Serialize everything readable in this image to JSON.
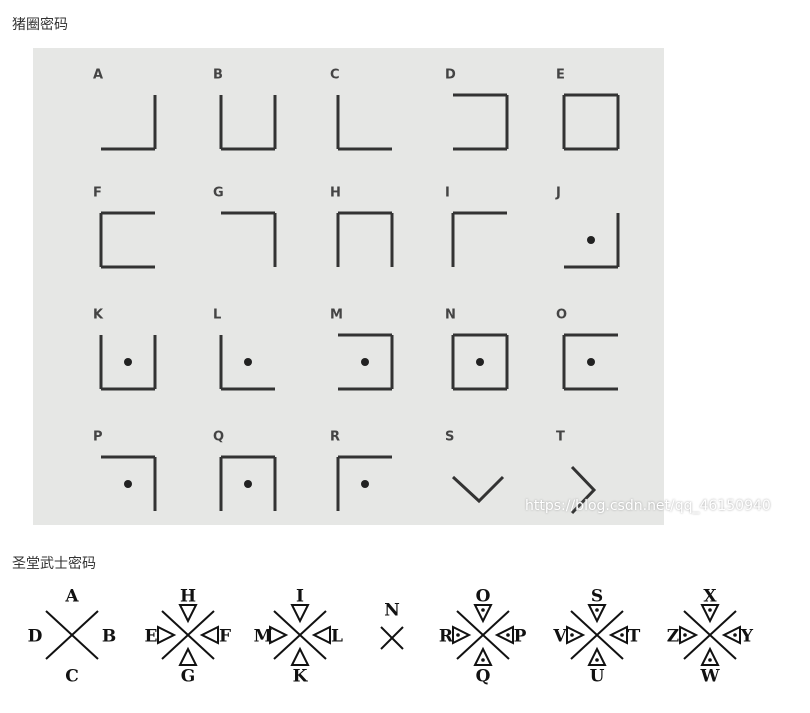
{
  "pigpen": {
    "title": "猪圈密码",
    "letters": [
      "A",
      "B",
      "C",
      "D",
      "E",
      "F",
      "G",
      "H",
      "I",
      "J",
      "K",
      "L",
      "M",
      "N",
      "O",
      "P",
      "Q",
      "R",
      "S",
      "T"
    ],
    "watermark": "https://blog.csdn.net/qq_46150940"
  },
  "templar": {
    "title": "圣堂武士密码",
    "groups": [
      {
        "top": "A",
        "left": "D",
        "right": "B",
        "bottom": "C"
      },
      {
        "top": "H",
        "left": "E",
        "right": "F",
        "bottom": "G"
      },
      {
        "top": "I",
        "left": "M",
        "right": "L",
        "bottom": "K"
      },
      {
        "center": "N"
      },
      {
        "top": "O",
        "left": "R",
        "right": "P",
        "bottom": "Q"
      },
      {
        "top": "S",
        "left": "V",
        "right": "T",
        "bottom": "U"
      },
      {
        "top": "X",
        "left": "Z",
        "right": "Y",
        "bottom": "W"
      }
    ]
  }
}
